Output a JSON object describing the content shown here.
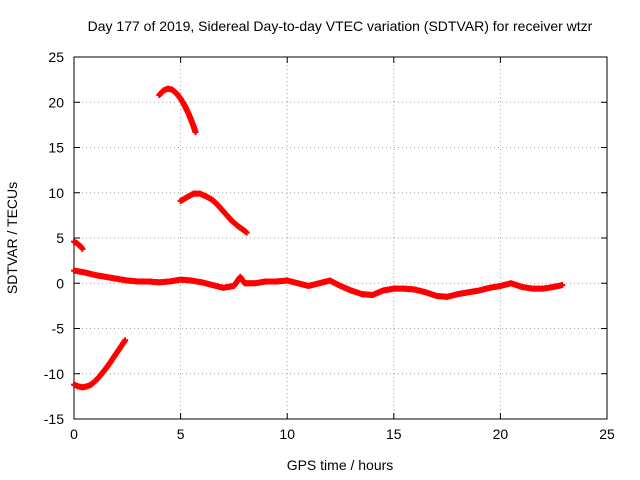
{
  "chart_data": {
    "type": "scatter",
    "title": "Day 177 of 2019, Sidereal Day-to-day VTEC variation (SDTVAR) for receiver wtzr",
    "xlabel": "GPS time / hours",
    "ylabel": "SDTVAR / TECUs",
    "xlim": [
      0,
      25
    ],
    "ylim": [
      -15,
      25
    ],
    "xticks": [
      0,
      5,
      10,
      15,
      20,
      25
    ],
    "yticks": [
      -15,
      -10,
      -5,
      0,
      5,
      10,
      15,
      20,
      25
    ],
    "grid": true,
    "marker_color": "#ff0000",
    "series": [
      {
        "name": "main-track",
        "x": [
          0.0,
          0.5,
          1.0,
          1.5,
          2.0,
          2.5,
          3.0,
          3.5,
          4.0,
          4.5,
          5.0,
          5.5,
          6.0,
          6.5,
          7.0,
          7.5,
          7.8,
          8.0,
          8.5,
          9.0,
          9.5,
          10.0,
          10.5,
          11.0,
          11.5,
          12.0,
          12.5,
          13.0,
          13.5,
          14.0,
          14.5,
          15.0,
          15.5,
          16.0,
          16.5,
          17.0,
          17.5,
          18.0,
          18.5,
          19.0,
          19.5,
          20.0,
          20.5,
          21.0,
          21.5,
          22.0,
          22.5,
          22.9
        ],
        "y": [
          1.4,
          1.2,
          0.9,
          0.7,
          0.5,
          0.3,
          0.2,
          0.2,
          0.1,
          0.2,
          0.4,
          0.3,
          0.1,
          -0.2,
          -0.5,
          -0.3,
          0.7,
          0.0,
          0.0,
          0.2,
          0.2,
          0.3,
          0.0,
          -0.3,
          0.0,
          0.3,
          -0.3,
          -0.8,
          -1.2,
          -1.3,
          -0.8,
          -0.6,
          -0.6,
          -0.7,
          -1.0,
          -1.4,
          -1.5,
          -1.2,
          -1.0,
          -0.8,
          -0.5,
          -0.3,
          0.0,
          -0.4,
          -0.6,
          -0.6,
          -0.4,
          -0.2
        ]
      },
      {
        "name": "early-upper-arc",
        "x": [
          4.0,
          4.2,
          4.4,
          4.6,
          4.8,
          5.0,
          5.2,
          5.4,
          5.6,
          5.7
        ],
        "y": [
          20.8,
          21.3,
          21.5,
          21.4,
          21.0,
          20.4,
          19.6,
          18.6,
          17.4,
          16.7
        ]
      },
      {
        "name": "mid-upper-arc",
        "x": [
          5.0,
          5.3,
          5.6,
          5.9,
          6.2,
          6.5,
          6.8,
          7.1,
          7.4,
          7.7,
          8.0,
          8.1
        ],
        "y": [
          9.1,
          9.5,
          9.9,
          9.9,
          9.6,
          9.2,
          8.5,
          7.7,
          6.9,
          6.3,
          5.8,
          5.6
        ]
      },
      {
        "name": "short-segment",
        "x": [
          0.0,
          0.15,
          0.3,
          0.4
        ],
        "y": [
          4.6,
          4.4,
          4.1,
          3.8
        ]
      },
      {
        "name": "lower-arc",
        "x": [
          0.0,
          0.2,
          0.4,
          0.6,
          0.8,
          1.0,
          1.2,
          1.4,
          1.6,
          1.8,
          2.0,
          2.2,
          2.4
        ],
        "y": [
          -11.2,
          -11.4,
          -11.5,
          -11.4,
          -11.2,
          -10.8,
          -10.3,
          -9.7,
          -9.1,
          -8.4,
          -7.7,
          -7.0,
          -6.3
        ]
      }
    ]
  }
}
